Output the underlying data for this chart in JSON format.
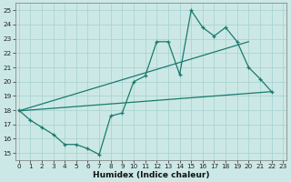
{
  "xlabel": "Humidex (Indice chaleur)",
  "x_values": [
    0,
    1,
    2,
    3,
    4,
    5,
    6,
    7,
    8,
    9,
    10,
    11,
    12,
    13,
    14,
    15,
    16,
    17,
    18,
    19,
    20,
    21,
    22
  ],
  "main_line_y": [
    18.0,
    17.3,
    16.8,
    16.3,
    15.6,
    15.6,
    15.3,
    14.9,
    17.6,
    17.8,
    20.0,
    20.4,
    22.8,
    22.8,
    20.5,
    25.0,
    23.8,
    23.2,
    23.8,
    22.8,
    21.0,
    20.2,
    19.3
  ],
  "straight_line1_x": [
    0,
    22
  ],
  "straight_line1_y": [
    17.95,
    19.3
  ],
  "straight_line2_x": [
    0,
    20
  ],
  "straight_line2_y": [
    17.95,
    22.8
  ],
  "ylim": [
    14.5,
    25.5
  ],
  "xlim": [
    -0.3,
    23.3
  ],
  "yticks": [
    15,
    16,
    17,
    18,
    19,
    20,
    21,
    22,
    23,
    24,
    25
  ],
  "xticks": [
    0,
    1,
    2,
    3,
    4,
    5,
    6,
    7,
    8,
    9,
    10,
    11,
    12,
    13,
    14,
    15,
    16,
    17,
    18,
    19,
    20,
    21,
    22,
    23
  ],
  "line_color": "#1a7a6e",
  "bg_color": "#cce8e6",
  "grid_color": "#aad4d0",
  "axes_bg": "#cce8e6"
}
